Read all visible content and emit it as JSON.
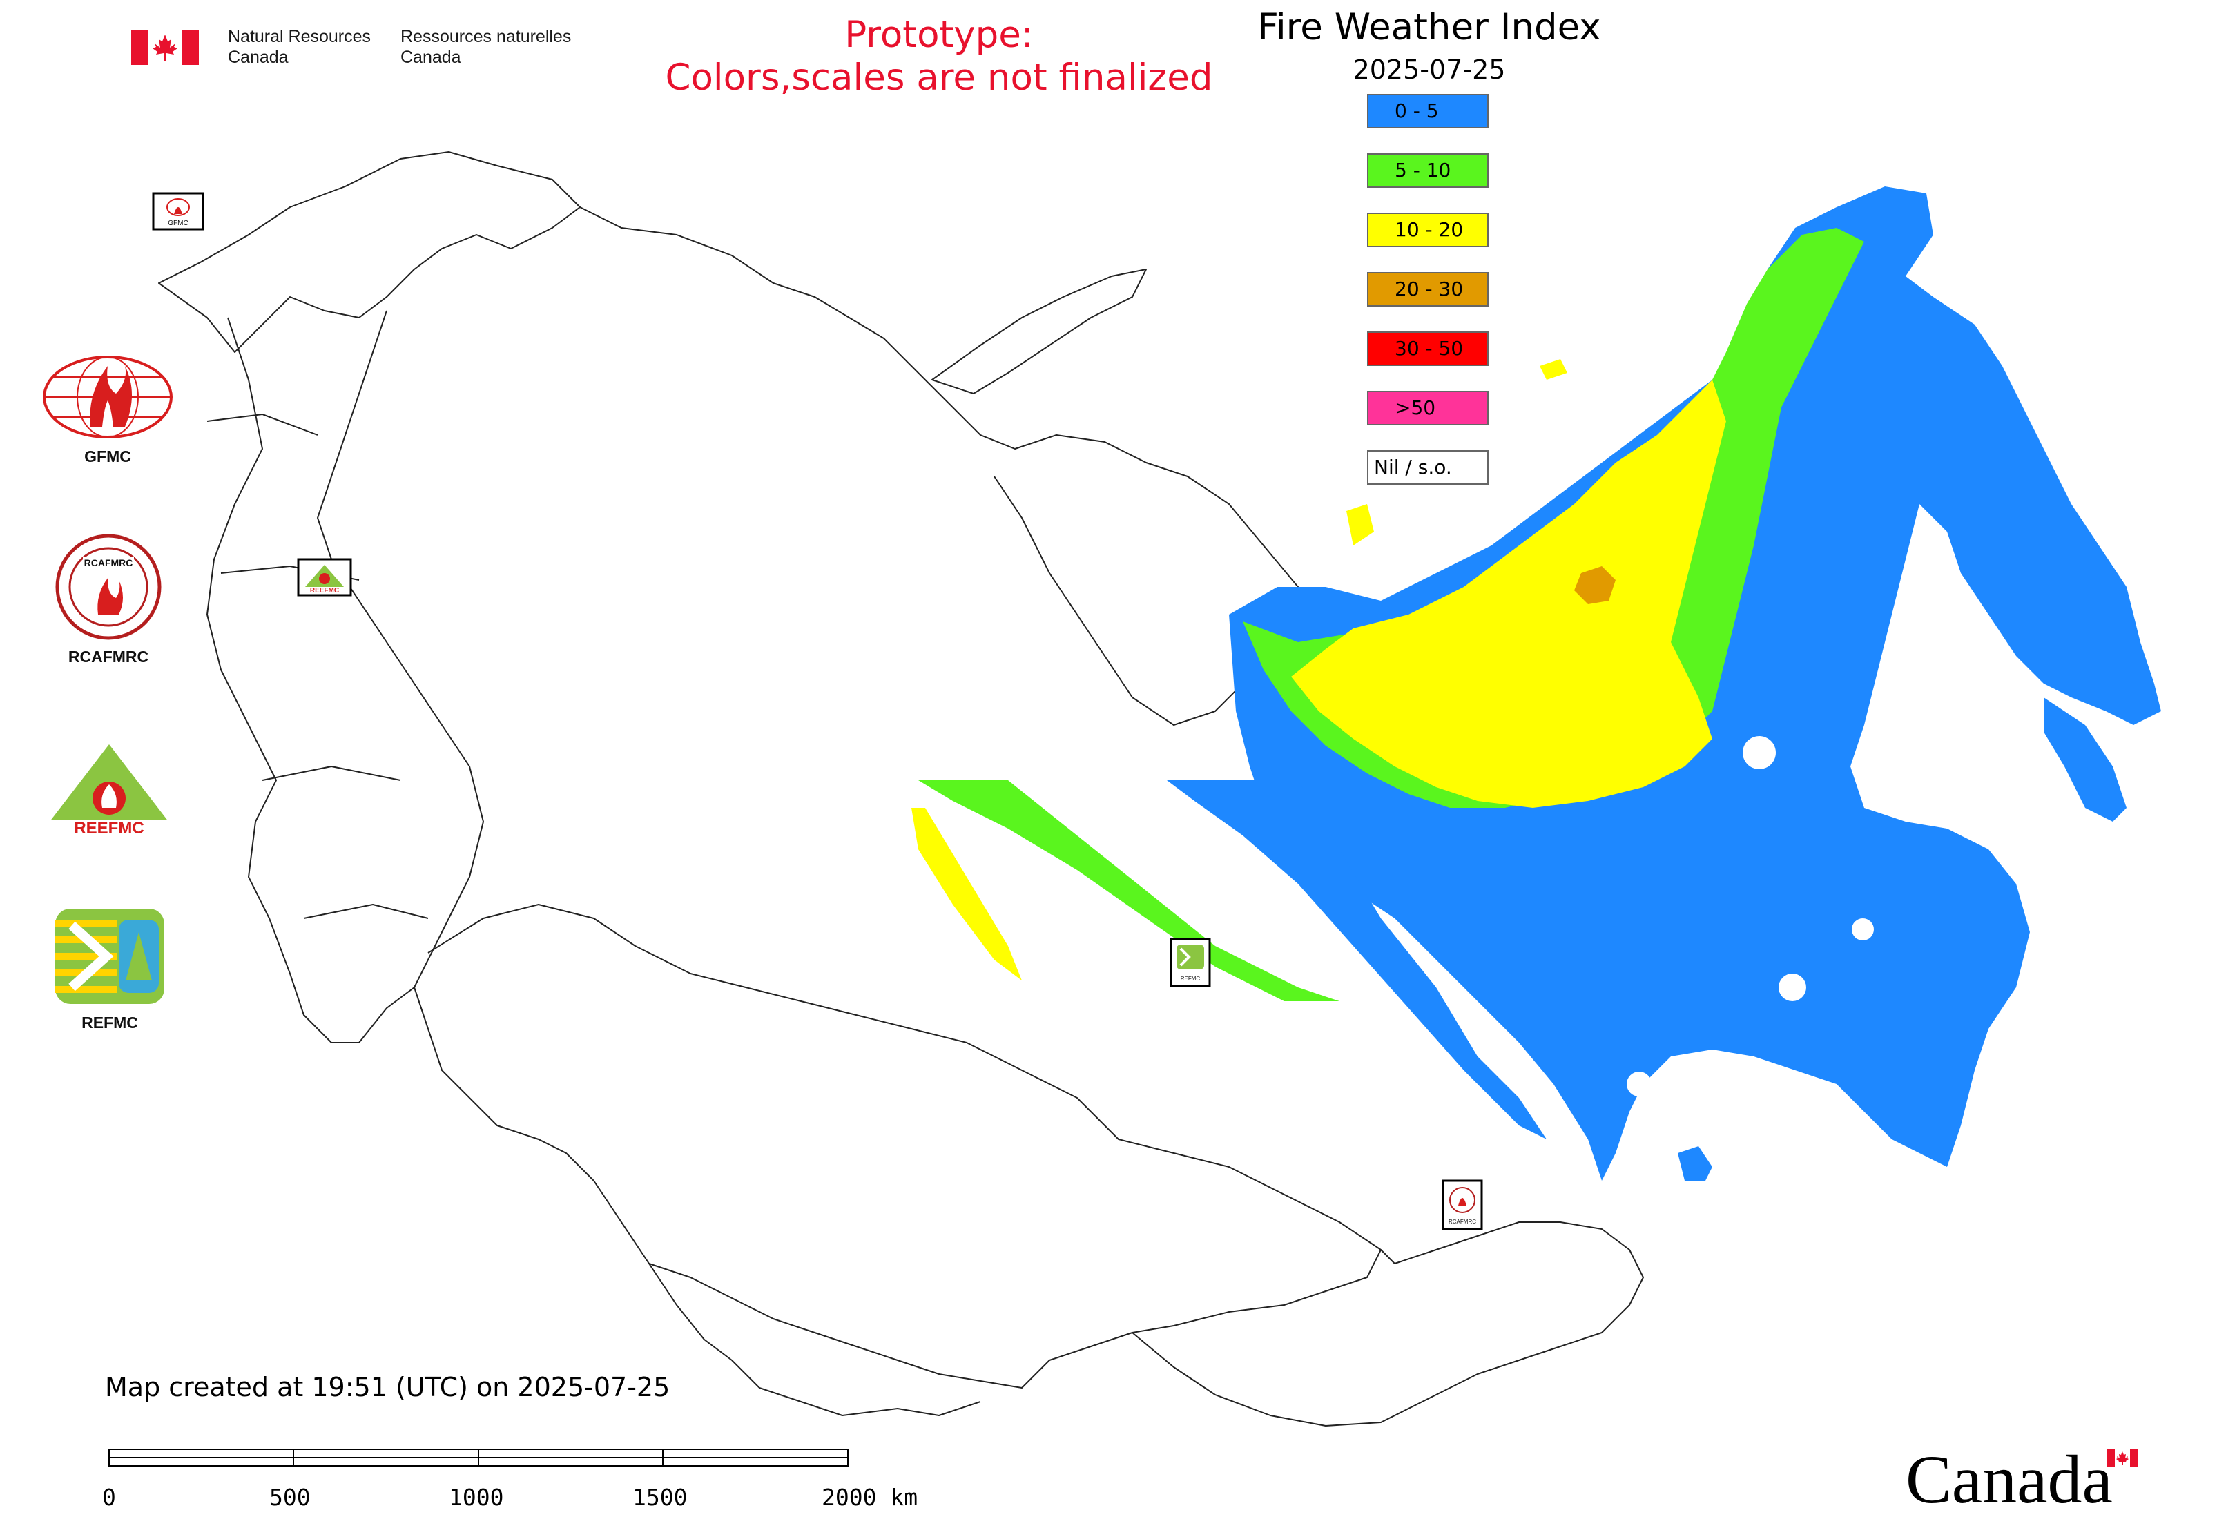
{
  "header": {
    "department_en": "Natural Resources\nCanada",
    "department_fr": "Ressources naturelles\nCanada",
    "prototype_line1": "Prototype:",
    "prototype_line2": "Colors,scales are not finalized"
  },
  "map": {
    "title": "Fire Weather Index",
    "date": "2025-07-25",
    "legend": [
      {
        "label": "0 - 5",
        "color": "#1e88ff"
      },
      {
        "label": "5 - 10",
        "color": "#5af51e"
      },
      {
        "label": "10 - 20",
        "color": "#ffff00"
      },
      {
        "label": "20 - 30",
        "color": "#e19a00"
      },
      {
        "label": "30 - 50",
        "color": "#ff0000"
      },
      {
        "label": ">50",
        "color": "#ff3399"
      },
      {
        "label": "Nil / s.o.",
        "color": "#ffffff"
      }
    ],
    "region_markers": [
      "GFMC",
      "REEFMC",
      "REFMC",
      "RCAFMRC"
    ]
  },
  "logos": [
    {
      "name": "GFMC",
      "label": "GFMC"
    },
    {
      "name": "RCAFMRC",
      "label": "RCAFMRC"
    },
    {
      "name": "REEFMC",
      "label": "REEFMC"
    },
    {
      "name": "REFMC",
      "label": "REFMC"
    }
  ],
  "footer": {
    "created": "Map created at 19:51 (UTC) on 2025-07-25",
    "scale_labels": [
      "0",
      "500",
      "1000",
      "1500",
      "2000 km"
    ],
    "wordmark": "Canada"
  }
}
